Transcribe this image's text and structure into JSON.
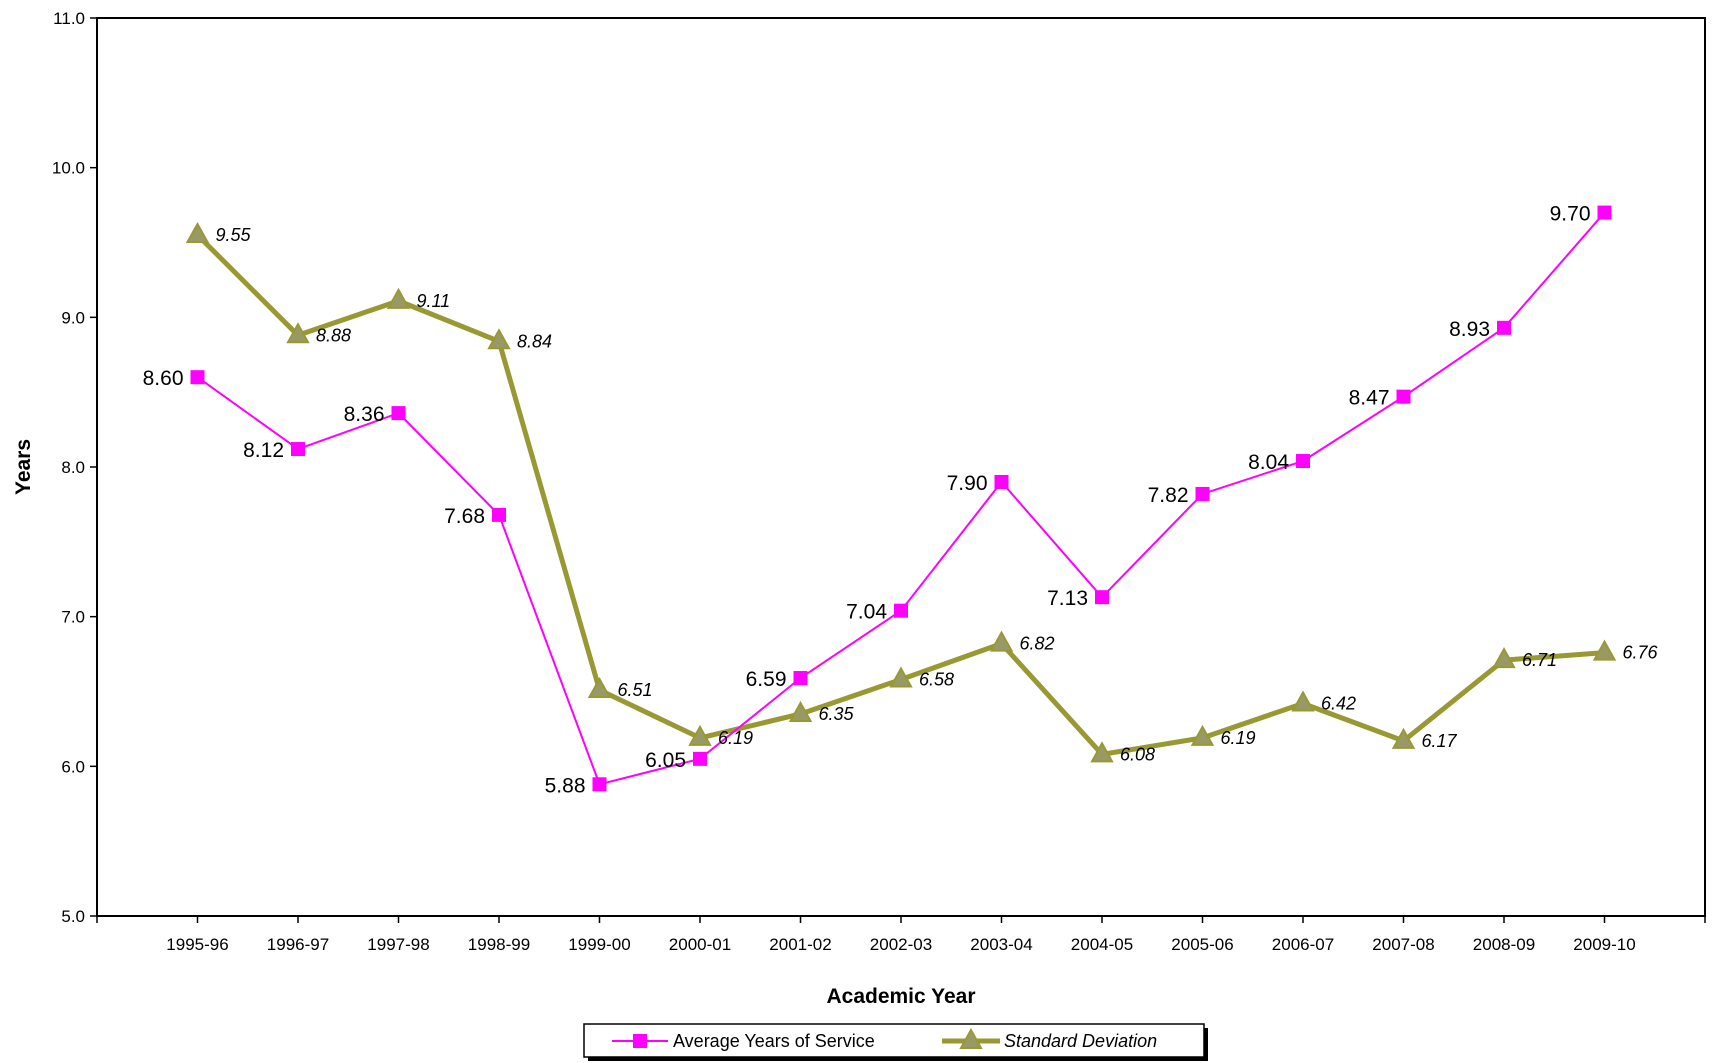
{
  "chart_data": {
    "type": "line",
    "xlabel": "Academic Year",
    "ylabel": "Years",
    "ylim": [
      5.0,
      11.0
    ],
    "yticks": [
      "5.0",
      "6.0",
      "7.0",
      "8.0",
      "9.0",
      "10.0",
      "11.0"
    ],
    "categories": [
      "1995-96",
      "1996-97",
      "1997-98",
      "1998-99",
      "1999-00",
      "2000-01",
      "2001-02",
      "2002-03",
      "2003-04",
      "2004-05",
      "2005-06",
      "2006-07",
      "2007-08",
      "2008-09",
      "2009-10"
    ],
    "series": [
      {
        "name": "Average Years of Service",
        "color": "#ff00ff",
        "marker": "square",
        "values": [
          8.6,
          8.12,
          8.36,
          7.68,
          5.88,
          6.05,
          6.59,
          7.04,
          7.9,
          7.13,
          7.82,
          8.04,
          8.47,
          8.93,
          9.7
        ],
        "labels": [
          "8.60",
          "8.12",
          "8.36",
          "7.68",
          "5.88",
          "6.05",
          "6.59",
          "7.04",
          "7.90",
          "7.13",
          "7.82",
          "8.04",
          "8.47",
          "8.93",
          "9.70"
        ]
      },
      {
        "name": "Standard Deviation",
        "color": "#999933",
        "marker": "triangle",
        "values": [
          9.55,
          8.88,
          9.11,
          8.84,
          6.51,
          6.19,
          6.35,
          6.58,
          6.82,
          6.08,
          6.19,
          6.42,
          6.17,
          6.71,
          6.76
        ],
        "labels": [
          "9.55",
          "8.88",
          "9.11",
          "8.84",
          "6.51",
          "6.19",
          "6.35",
          "6.58",
          "6.82",
          "6.08",
          "6.19",
          "6.42",
          "6.17",
          "6.71",
          "6.76"
        ]
      }
    ],
    "grid": false,
    "legend_position": "bottom"
  }
}
